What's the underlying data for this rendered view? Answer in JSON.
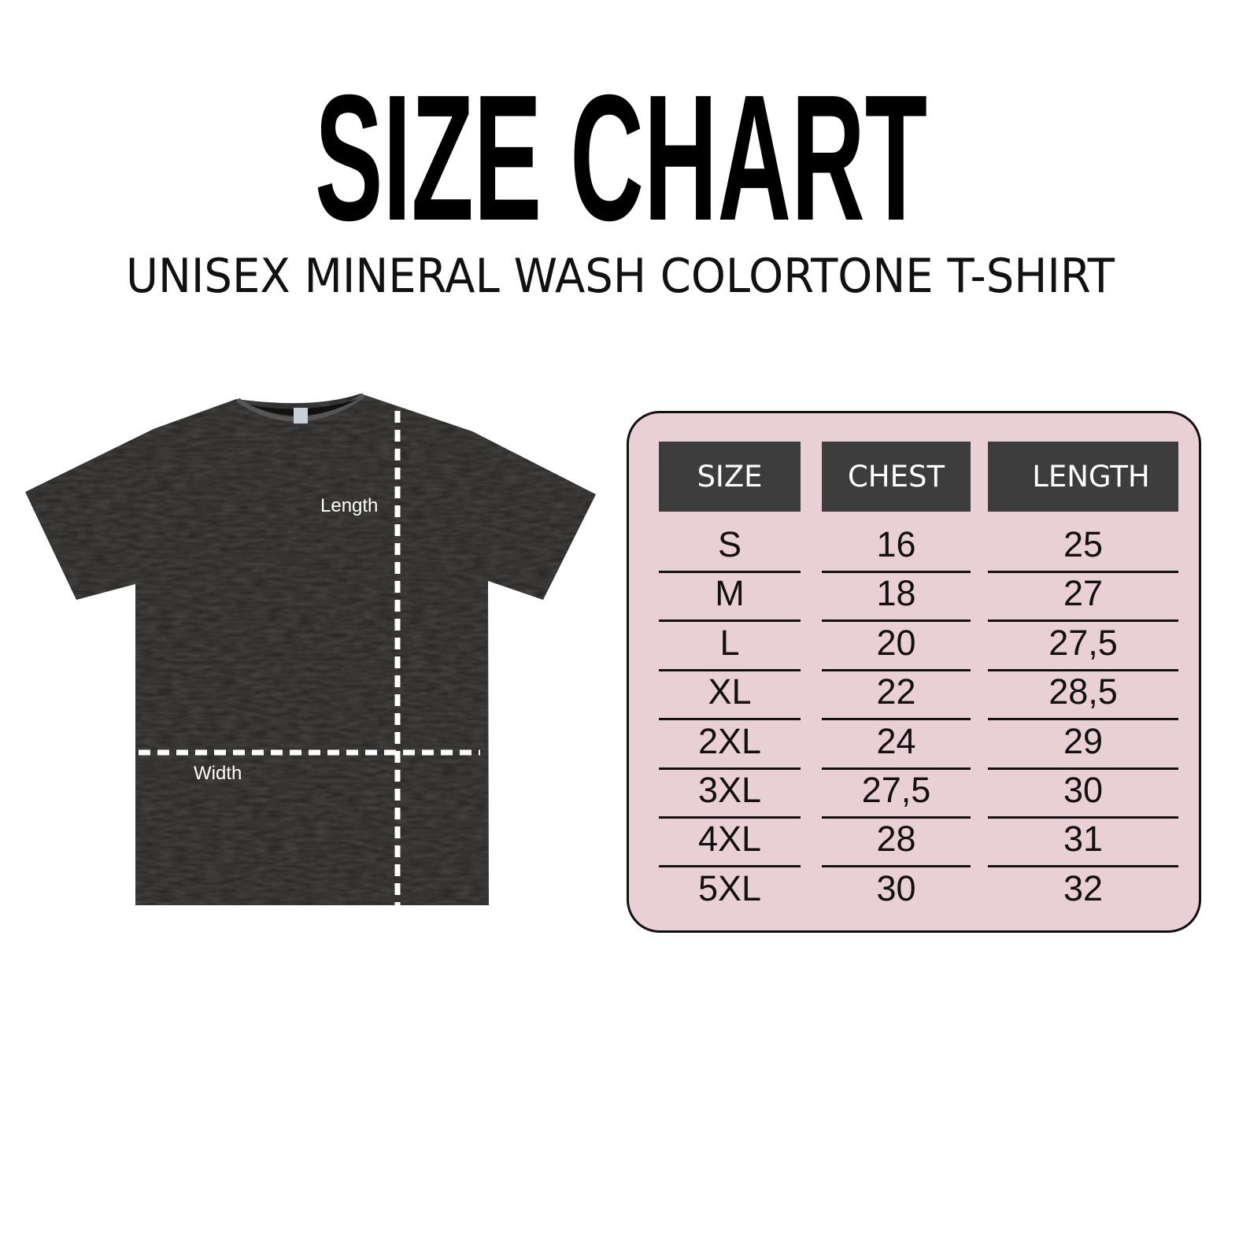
{
  "title": "SIZE CHART",
  "subtitle": "UNISEX MINERAL WASH COLORTONE T-SHIRT",
  "shirt": {
    "length_label": "Length",
    "width_label": "Width",
    "color": "#2b2a29"
  },
  "table": {
    "headers": [
      "SIZE",
      "CHEST",
      "LENGTH"
    ],
    "rows": [
      [
        "S",
        "16",
        "25"
      ],
      [
        "M",
        "18",
        "27"
      ],
      [
        "L",
        "20",
        "27,5"
      ],
      [
        "XL",
        "22",
        "28,5"
      ],
      [
        "2XL",
        "24",
        "29"
      ],
      [
        "3XL",
        "27,5",
        "30"
      ],
      [
        "4XL",
        "28",
        "31"
      ],
      [
        "5XL",
        "30",
        "32"
      ]
    ],
    "panel_color": "#e8d0d4",
    "header_color": "#3d3d3d"
  }
}
